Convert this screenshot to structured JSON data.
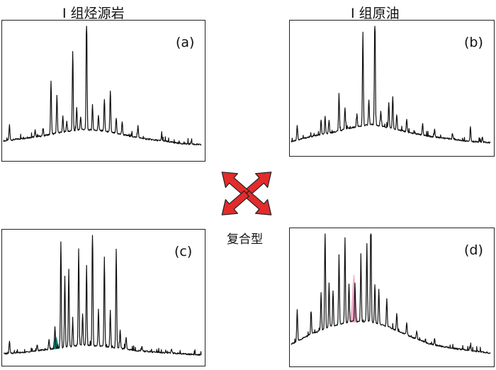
{
  "titles": {
    "left": "Ⅰ 组烃源岩",
    "right": "Ⅰ 组原油"
  },
  "center": {
    "label": "复合型",
    "arrow_color": "#e32b2b",
    "arrow_outline": "#222222"
  },
  "panels": {
    "a": {
      "label": "(a)"
    },
    "b": {
      "label": "(b)"
    },
    "c": {
      "label": "(c)"
    },
    "d": {
      "label": "(d)"
    }
  },
  "chart_data": [
    {
      "type": "line",
      "panel": "a",
      "trace_color": "#111111",
      "baseline": {
        "x": [
          0,
          0.1,
          0.2,
          0.3,
          0.4,
          0.5,
          0.6,
          0.7,
          0.8,
          0.9,
          1.0
        ],
        "y": [
          0.1,
          0.12,
          0.14,
          0.17,
          0.19,
          0.18,
          0.15,
          0.12,
          0.1,
          0.08,
          0.07
        ]
      },
      "peaks": [
        {
          "x": 0.03,
          "h": 0.12
        },
        {
          "x": 0.16,
          "h": 0.05
        },
        {
          "x": 0.2,
          "h": 0.06
        },
        {
          "x": 0.24,
          "h": 0.42
        },
        {
          "x": 0.27,
          "h": 0.3
        },
        {
          "x": 0.3,
          "h": 0.12
        },
        {
          "x": 0.32,
          "h": 0.08
        },
        {
          "x": 0.35,
          "h": 0.62
        },
        {
          "x": 0.37,
          "h": 0.18
        },
        {
          "x": 0.39,
          "h": 0.1
        },
        {
          "x": 0.42,
          "h": 0.98
        },
        {
          "x": 0.45,
          "h": 0.2
        },
        {
          "x": 0.48,
          "h": 0.12
        },
        {
          "x": 0.51,
          "h": 0.25
        },
        {
          "x": 0.54,
          "h": 0.32
        },
        {
          "x": 0.57,
          "h": 0.12
        },
        {
          "x": 0.6,
          "h": 0.1
        },
        {
          "x": 0.68,
          "h": 0.09
        },
        {
          "x": 0.8,
          "h": 0.05
        },
        {
          "x": 0.95,
          "h": 0.03
        }
      ]
    },
    {
      "type": "line",
      "panel": "b",
      "trace_color": "#111111",
      "baseline": {
        "x": [
          0,
          0.1,
          0.2,
          0.3,
          0.4,
          0.5,
          0.6,
          0.7,
          0.8,
          0.9,
          1.0
        ],
        "y": [
          0.06,
          0.1,
          0.13,
          0.17,
          0.2,
          0.17,
          0.13,
          0.1,
          0.08,
          0.06,
          0.05
        ]
      },
      "peaks": [
        {
          "x": 0.03,
          "h": 0.12
        },
        {
          "x": 0.15,
          "h": 0.12
        },
        {
          "x": 0.17,
          "h": 0.14
        },
        {
          "x": 0.19,
          "h": 0.1
        },
        {
          "x": 0.24,
          "h": 0.3
        },
        {
          "x": 0.27,
          "h": 0.18
        },
        {
          "x": 0.33,
          "h": 0.1
        },
        {
          "x": 0.36,
          "h": 0.76
        },
        {
          "x": 0.39,
          "h": 0.2
        },
        {
          "x": 0.42,
          "h": 0.98
        },
        {
          "x": 0.45,
          "h": 0.12
        },
        {
          "x": 0.49,
          "h": 0.2
        },
        {
          "x": 0.51,
          "h": 0.26
        },
        {
          "x": 0.53,
          "h": 0.12
        },
        {
          "x": 0.58,
          "h": 0.1
        },
        {
          "x": 0.66,
          "h": 0.09
        },
        {
          "x": 0.72,
          "h": 0.06
        },
        {
          "x": 0.81,
          "h": 0.05
        },
        {
          "x": 0.9,
          "h": 0.12
        },
        {
          "x": 0.96,
          "h": 0.04
        }
      ]
    },
    {
      "type": "line",
      "panel": "c",
      "trace_color": "#111111",
      "highlight_color": "#1a8a7a",
      "baseline": {
        "x": [
          0,
          0.1,
          0.2,
          0.3,
          0.4,
          0.5,
          0.6,
          0.7,
          0.8,
          0.9,
          1.0
        ],
        "y": [
          0.04,
          0.05,
          0.07,
          0.09,
          0.11,
          0.1,
          0.08,
          0.06,
          0.05,
          0.04,
          0.03
        ]
      },
      "peaks": [
        {
          "x": 0.03,
          "h": 0.1
        },
        {
          "x": 0.17,
          "h": 0.05
        },
        {
          "x": 0.23,
          "h": 0.08
        },
        {
          "x": 0.26,
          "h": 0.18
        },
        {
          "x": 0.29,
          "h": 0.85
        },
        {
          "x": 0.31,
          "h": 0.55
        },
        {
          "x": 0.33,
          "h": 0.62
        },
        {
          "x": 0.35,
          "h": 0.2
        },
        {
          "x": 0.38,
          "h": 0.78
        },
        {
          "x": 0.4,
          "h": 0.25
        },
        {
          "x": 0.42,
          "h": 0.65
        },
        {
          "x": 0.45,
          "h": 1.0
        },
        {
          "x": 0.48,
          "h": 0.3
        },
        {
          "x": 0.51,
          "h": 0.72
        },
        {
          "x": 0.54,
          "h": 0.3
        },
        {
          "x": 0.57,
          "h": 0.8
        },
        {
          "x": 0.59,
          "h": 0.15
        },
        {
          "x": 0.62,
          "h": 0.1
        },
        {
          "x": 0.7,
          "h": 0.04
        },
        {
          "x": 0.85,
          "h": 0.03
        }
      ],
      "highlight": {
        "x": 0.265,
        "h": 0.1
      }
    },
    {
      "type": "line",
      "panel": "d",
      "trace_color": "#111111",
      "highlight_color": "#f4a9c8",
      "baseline": {
        "x": [
          0,
          0.1,
          0.2,
          0.3,
          0.4,
          0.5,
          0.6,
          0.7,
          0.8,
          0.9,
          1.0
        ],
        "y": [
          0.12,
          0.2,
          0.26,
          0.3,
          0.3,
          0.25,
          0.18,
          0.12,
          0.09,
          0.07,
          0.05
        ]
      },
      "peaks": [
        {
          "x": 0.03,
          "h": 0.25
        },
        {
          "x": 0.1,
          "h": 0.18
        },
        {
          "x": 0.15,
          "h": 0.3
        },
        {
          "x": 0.17,
          "h": 0.82
        },
        {
          "x": 0.19,
          "h": 0.35
        },
        {
          "x": 0.21,
          "h": 0.28
        },
        {
          "x": 0.24,
          "h": 0.55
        },
        {
          "x": 0.27,
          "h": 0.68
        },
        {
          "x": 0.29,
          "h": 0.3
        },
        {
          "x": 0.32,
          "h": 0.3
        },
        {
          "x": 0.35,
          "h": 0.5
        },
        {
          "x": 0.38,
          "h": 0.62
        },
        {
          "x": 0.4,
          "h": 0.9
        },
        {
          "x": 0.42,
          "h": 0.3
        },
        {
          "x": 0.44,
          "h": 0.28
        },
        {
          "x": 0.48,
          "h": 0.22
        },
        {
          "x": 0.53,
          "h": 0.14
        },
        {
          "x": 0.58,
          "h": 0.1
        },
        {
          "x": 0.63,
          "h": 0.06
        },
        {
          "x": 0.72,
          "h": 0.05
        },
        {
          "x": 0.9,
          "h": 0.04
        }
      ],
      "highlight": {
        "x": 0.315,
        "h": 0.38
      }
    }
  ]
}
